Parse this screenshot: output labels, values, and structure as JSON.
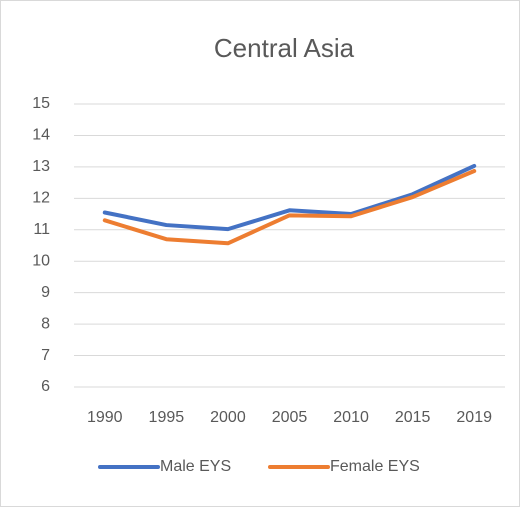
{
  "chart_data": {
    "type": "line",
    "title": "Central Asia",
    "categories": [
      "1990",
      "1995",
      "2000",
      "2005",
      "2010",
      "2015",
      "2019"
    ],
    "series": [
      {
        "name": "Male EYS",
        "color": "#4472c4",
        "values": [
          11.55,
          11.15,
          11.02,
          11.62,
          11.5,
          12.13,
          13.03
        ]
      },
      {
        "name": "Female EYS",
        "color": "#ed7d31",
        "values": [
          11.3,
          10.7,
          10.57,
          11.46,
          11.43,
          12.04,
          12.87
        ]
      }
    ],
    "ylim": [
      6,
      15
    ],
    "yticks": [
      6,
      7,
      8,
      9,
      10,
      11,
      12,
      13,
      14,
      15
    ],
    "grid": true,
    "legend": "bottom"
  }
}
